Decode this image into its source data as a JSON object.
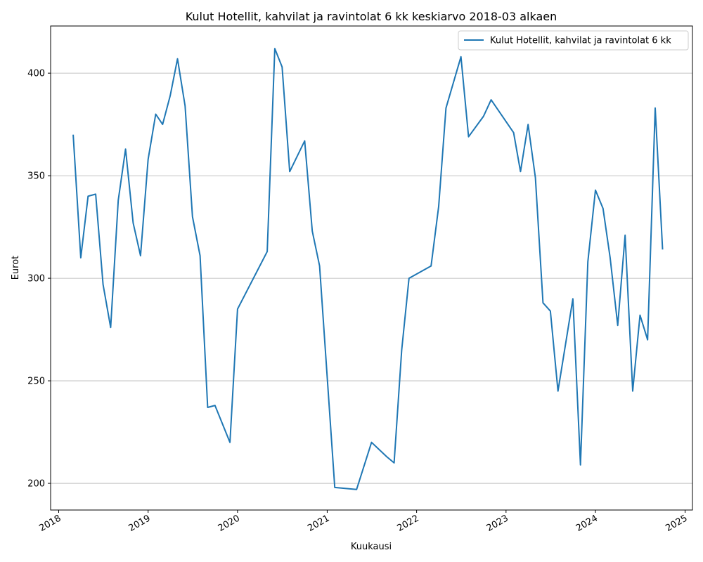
{
  "chart_data": {
    "type": "line",
    "title": "Kulut Hotellit, kahvilat ja ravintolat 6 kk keskiarvo 2018-03 alkaen",
    "xlabel": "Kuukausi",
    "ylabel": "Eurot",
    "xlim": [
      "2017-11-29",
      "2025-01-31"
    ],
    "ylim": [
      187,
      423
    ],
    "x_ticks": [
      "2018",
      "2019",
      "2020",
      "2021",
      "2022",
      "2023",
      "2024",
      "2025"
    ],
    "y_ticks": [
      200,
      250,
      300,
      350,
      400
    ],
    "grid": "y",
    "legend_position": "top-right",
    "series": [
      {
        "name": "Kulut Hotellit, kahvilat ja ravintolat 6 kk",
        "color": "#1f77b4",
        "points": [
          [
            "2018-03-01",
            370
          ],
          [
            "2018-04-01",
            310
          ],
          [
            "2018-05-01",
            340
          ],
          [
            "2018-06-01",
            341
          ],
          [
            "2018-07-01",
            297
          ],
          [
            "2018-08-01",
            276
          ],
          [
            "2018-09-01",
            338
          ],
          [
            "2018-10-01",
            363
          ],
          [
            "2018-11-01",
            327
          ],
          [
            "2018-12-01",
            311
          ],
          [
            "2019-01-01",
            358
          ],
          [
            "2019-02-01",
            380
          ],
          [
            "2019-03-01",
            375
          ],
          [
            "2019-04-01",
            389
          ],
          [
            "2019-05-01",
            407
          ],
          [
            "2019-06-01",
            384
          ],
          [
            "2019-07-01",
            330
          ],
          [
            "2019-08-01",
            311
          ],
          [
            "2019-09-01",
            237
          ],
          [
            "2019-10-01",
            238
          ],
          [
            "2019-12-01",
            220
          ],
          [
            "2020-01-01",
            285
          ],
          [
            "2020-05-01",
            313
          ],
          [
            "2020-06-01",
            412
          ],
          [
            "2020-07-01",
            403
          ],
          [
            "2020-08-01",
            352
          ],
          [
            "2020-10-01",
            367
          ],
          [
            "2020-11-01",
            323
          ],
          [
            "2020-12-01",
            306
          ],
          [
            "2021-02-01",
            198
          ],
          [
            "2021-05-01",
            197
          ],
          [
            "2021-07-01",
            220
          ],
          [
            "2021-09-01",
            213
          ],
          [
            "2021-10-01",
            210
          ],
          [
            "2021-11-01",
            265
          ],
          [
            "2021-12-01",
            300
          ],
          [
            "2022-03-01",
            306
          ],
          [
            "2022-04-01",
            335
          ],
          [
            "2022-05-01",
            383
          ],
          [
            "2022-07-01",
            408
          ],
          [
            "2022-08-01",
            369
          ],
          [
            "2022-10-01",
            379
          ],
          [
            "2022-11-01",
            387
          ],
          [
            "2023-02-01",
            371
          ],
          [
            "2023-03-01",
            352
          ],
          [
            "2023-04-01",
            375
          ],
          [
            "2023-05-01",
            349
          ],
          [
            "2023-06-01",
            288
          ],
          [
            "2023-07-01",
            284
          ],
          [
            "2023-08-01",
            245
          ],
          [
            "2023-10-01",
            290
          ],
          [
            "2023-11-01",
            209
          ],
          [
            "2023-12-01",
            308
          ],
          [
            "2024-01-01",
            343
          ],
          [
            "2024-02-01",
            334
          ],
          [
            "2024-03-01",
            310
          ],
          [
            "2024-04-01",
            277
          ],
          [
            "2024-05-01",
            321
          ],
          [
            "2024-06-01",
            245
          ],
          [
            "2024-07-01",
            282
          ],
          [
            "2024-08-01",
            270
          ],
          [
            "2024-09-01",
            383
          ],
          [
            "2024-10-01",
            314
          ]
        ]
      }
    ]
  }
}
